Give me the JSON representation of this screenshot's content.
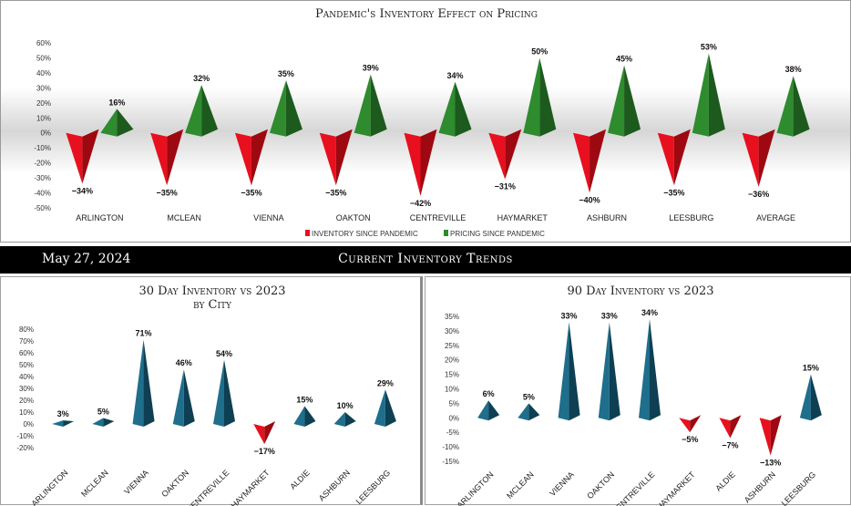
{
  "banner": {
    "date": "May 27, 2024",
    "title": "Current Inventory Trends"
  },
  "colors": {
    "neg": "#e8101e",
    "neg_dark": "#9e0810",
    "pos": "#2e8b2e",
    "pos_dark": "#1d5a1d",
    "blue": "#1e6e8c",
    "blue_dark": "#0e3f52"
  },
  "chart_data": [
    {
      "type": "bar",
      "title": "Pandemic's Inventory Effect on Pricing",
      "categories": [
        "Arlington",
        "McLean",
        "Vienna",
        "Oakton",
        "Centreville",
        "Haymarket",
        "Ashburn",
        "Leesburg",
        "Average"
      ],
      "series": [
        {
          "name": "Inventory Since Pandemic",
          "values": [
            -34,
            -35,
            -35,
            -35,
            -42,
            -31,
            -40,
            -35,
            -36
          ],
          "labels": [
            "-34%",
            "-35%",
            "-35%",
            "-35%",
            "-42%",
            "-31%",
            "-40%",
            "-35%",
            "-36%"
          ]
        },
        {
          "name": "Pricing Since Pandemic",
          "values": [
            16,
            32,
            35,
            39,
            34,
            50,
            45,
            53,
            38
          ],
          "labels": [
            "16%",
            "32%",
            "35%",
            "39%",
            "34%",
            "50%",
            "45%",
            "53%",
            "38%"
          ]
        }
      ],
      "yticks": [
        "60%",
        "50%",
        "40%",
        "30%",
        "20%",
        "10%",
        "0%",
        "-10%",
        "-20%",
        "-30%",
        "-40%",
        "-50%"
      ],
      "ylim": [
        -50,
        60
      ],
      "legend": "bottom"
    },
    {
      "type": "bar",
      "title": "30 Day Inventory vs 2023",
      "subtitle": "by City",
      "categories": [
        "Arlington",
        "McLean",
        "Vienna",
        "Oakton",
        "Centreville",
        "Haymarket",
        "Aldie",
        "Ashburn",
        "Leesburg"
      ],
      "values": [
        3,
        5,
        71,
        46,
        54,
        -17,
        15,
        10,
        29
      ],
      "labels": [
        "3%",
        "5%",
        "71%",
        "46%",
        "54%",
        "-17%",
        "15%",
        "10%",
        "29%"
      ],
      "yticks": [
        "80%",
        "70%",
        "60%",
        "50%",
        "40%",
        "30%",
        "20%",
        "10%",
        "0%",
        "-10%",
        "-20%"
      ],
      "ylim": [
        -20,
        80
      ]
    },
    {
      "type": "bar",
      "title": "90 Day Inventory vs 2023",
      "categories": [
        "Arlington",
        "McLean",
        "Vienna",
        "Oakton",
        "Centreville",
        "Haymarket",
        "Aldie",
        "Ashburn",
        "Leesburg"
      ],
      "values": [
        6,
        5,
        33,
        33,
        34,
        -5,
        -7,
        -13,
        15
      ],
      "labels": [
        "6%",
        "5%",
        "33%",
        "33%",
        "34%",
        "-5%",
        "-7%",
        "-13%",
        "15%"
      ],
      "yticks": [
        "35%",
        "30%",
        "25%",
        "20%",
        "15%",
        "10%",
        "5%",
        "0%",
        "-5%",
        "-10%",
        "-15%"
      ],
      "ylim": [
        -15,
        35
      ]
    }
  ]
}
